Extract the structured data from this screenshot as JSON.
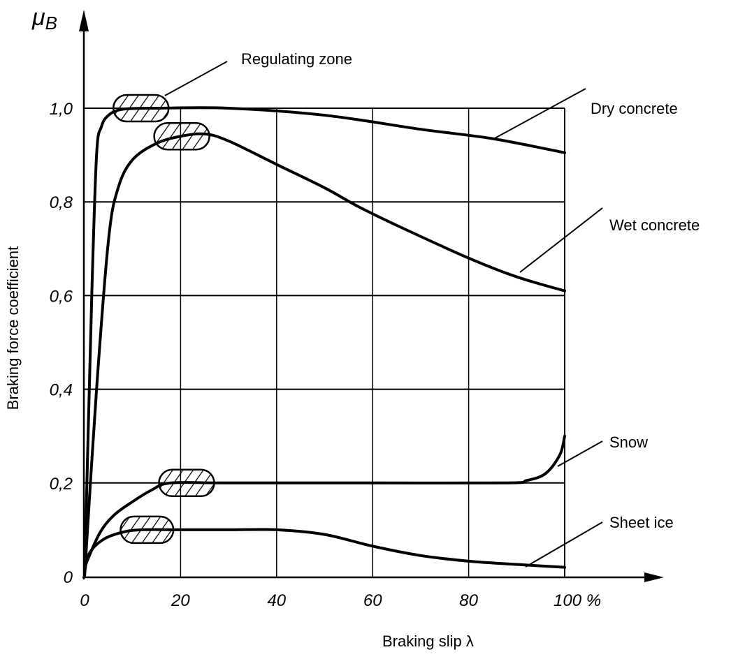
{
  "chart_data": {
    "type": "line",
    "title": "",
    "xlabel": "Braking slip λ",
    "ylabel": "Braking force coefficient",
    "y_symbol": "μB",
    "y_symbol_main": "μ",
    "y_symbol_sub": "B",
    "xlim": [
      0,
      100
    ],
    "ylim": [
      0,
      1.0
    ],
    "x_unit": "%",
    "grid": true,
    "x_ticks": [
      0,
      20,
      40,
      60,
      80,
      100
    ],
    "x_tick_labels": [
      "0",
      "20",
      "40",
      "60",
      "80",
      "100 %"
    ],
    "y_ticks": [
      0,
      0.2,
      0.4,
      0.6,
      0.8,
      1.0
    ],
    "y_tick_labels": [
      "0",
      "0,2",
      "0,4",
      "0,6",
      "0,8",
      "1,0"
    ],
    "series": [
      {
        "name": "Dry concrete",
        "x": [
          0,
          1.5,
          2.5,
          3.5,
          5,
          8,
          15,
          30,
          50,
          70,
          85,
          100
        ],
        "y": [
          0,
          0.6,
          0.9,
          0.96,
          0.985,
          0.998,
          1.0,
          1.0,
          0.985,
          0.955,
          0.935,
          0.905
        ]
      },
      {
        "name": "Wet concrete",
        "x": [
          0,
          2.5,
          5,
          7,
          10,
          15,
          20,
          25,
          30,
          40,
          50,
          57,
          65,
          80,
          90,
          100
        ],
        "y": [
          0,
          0.4,
          0.72,
          0.83,
          0.89,
          0.925,
          0.94,
          0.945,
          0.93,
          0.88,
          0.83,
          0.79,
          0.75,
          0.68,
          0.64,
          0.61
        ]
      },
      {
        "name": "Snow",
        "x": [
          0,
          3,
          6,
          10,
          14,
          18,
          30,
          60,
          88,
          92,
          96,
          99,
          100
        ],
        "y": [
          0.02,
          0.09,
          0.13,
          0.16,
          0.185,
          0.2,
          0.2,
          0.2,
          0.2,
          0.205,
          0.22,
          0.26,
          0.3
        ]
      },
      {
        "name": "Sheet ice",
        "x": [
          0,
          1,
          4,
          8,
          12,
          20,
          30,
          40,
          50,
          60,
          70,
          80,
          90,
          100
        ],
        "y": [
          0.01,
          0.05,
          0.08,
          0.095,
          0.1,
          0.1,
          0.1,
          0.1,
          0.09,
          0.065,
          0.045,
          0.033,
          0.026,
          0.02
        ]
      }
    ],
    "annotations": [
      {
        "text": "Regulating zone",
        "zones": [
          {
            "x": [
              6,
              17.5
            ],
            "y": 1.0
          },
          {
            "x": [
              14.5,
              26
            ],
            "y": 0.94
          },
          {
            "x": [
              15.5,
              27
            ],
            "y": 0.2
          },
          {
            "x": [
              7.5,
              18.5
            ],
            "y": 0.1
          }
        ]
      }
    ]
  }
}
